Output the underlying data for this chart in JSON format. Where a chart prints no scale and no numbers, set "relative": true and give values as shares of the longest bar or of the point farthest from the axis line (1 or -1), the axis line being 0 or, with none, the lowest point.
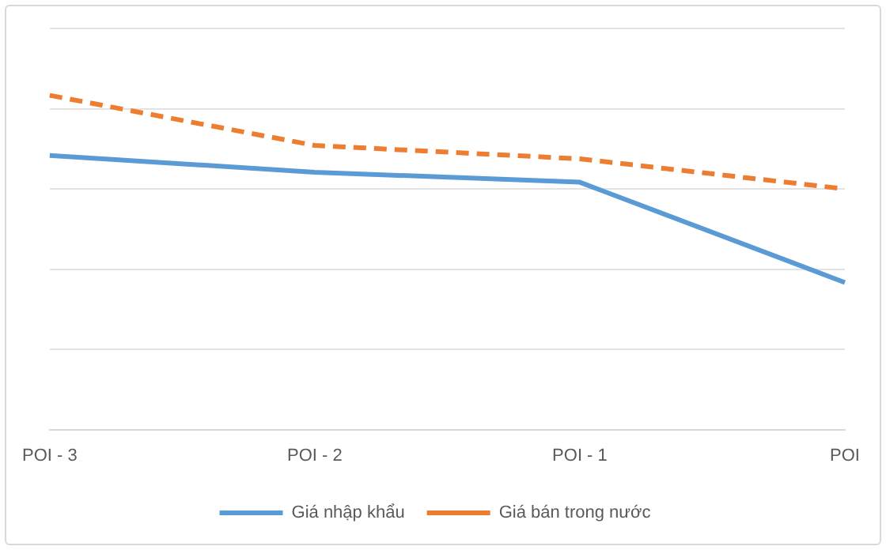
{
  "chart_data": {
    "type": "line",
    "relative": true,
    "categories": [
      "POI - 3",
      "POI - 2",
      "POI - 1",
      "POI"
    ],
    "series": [
      {
        "name": "Giá nhập khẩu",
        "color": "#5b9bd5",
        "values": [
          0.82,
          0.77,
          0.74,
          0.44
        ],
        "line_style": "solid"
      },
      {
        "name": "Giá bán trong nước",
        "color": "#ed7d31",
        "values": [
          1,
          0.85,
          0.81,
          0.72
        ],
        "line_style": "dashed"
      }
    ],
    "grid": "y",
    "legend": "bottom",
    "marker": "none"
  }
}
